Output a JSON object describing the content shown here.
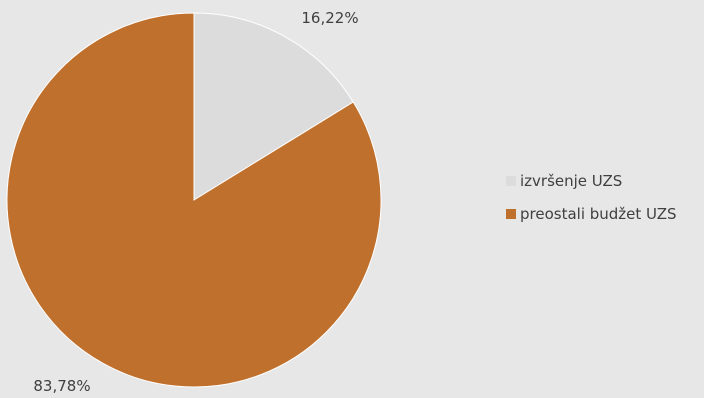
{
  "colors": {
    "background": "#E7E7E7",
    "text": "#404040"
  },
  "chart_data": {
    "type": "pie",
    "categories": [
      "izvršenje UZS",
      "preostali budžet UZS"
    ],
    "values": [
      16.22,
      83.78
    ],
    "data_labels": [
      "16,22%",
      "83,78%"
    ],
    "colors": [
      "#DCDCDC",
      "#C0702D"
    ],
    "legend_position": "right",
    "title": ""
  }
}
